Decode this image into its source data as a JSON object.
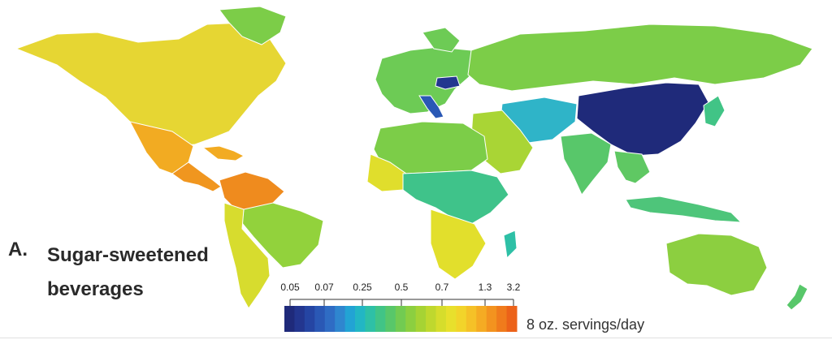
{
  "panel": {
    "letter": "A.",
    "title_line1": "Sugar-sweetened",
    "title_line2": "beverages"
  },
  "legend": {
    "ticks": [
      "0.05",
      "0.07",
      "0.25",
      "0.5",
      "0.7",
      "1.3",
      "3.2"
    ],
    "unit": "8 oz. servings/day",
    "colors": [
      "#1f2a7a",
      "#23368f",
      "#2545a3",
      "#2a58b5",
      "#2f6cc4",
      "#2f86cf",
      "#22a3d4",
      "#22b6c4",
      "#2ec0a6",
      "#41c486",
      "#58c76a",
      "#72cb52",
      "#8ccf40",
      "#a6d334",
      "#bfd82e",
      "#d6dd2c",
      "#e8e02c",
      "#f2d42a",
      "#f5c127",
      "#f5ab23",
      "#f3931f",
      "#f07b1c",
      "#ec6219"
    ]
  },
  "map": {
    "regions": [
      {
        "name": "North America",
        "color": "#e6d633"
      },
      {
        "name": "Mexico",
        "color": "#f2ab22"
      },
      {
        "name": "Central America",
        "color": "#f0961f"
      },
      {
        "name": "Northern South America",
        "color": "#ef8b1e"
      },
      {
        "name": "Brazil",
        "color": "#92d23c"
      },
      {
        "name": "Southern South America",
        "color": "#d7dc2e"
      },
      {
        "name": "Europe",
        "color": "#6dcb55"
      },
      {
        "name": "Poland",
        "color": "#23368f"
      },
      {
        "name": "Italy",
        "color": "#2a58b5"
      },
      {
        "name": "Russia",
        "color": "#7ccd48"
      },
      {
        "name": "Central Asia",
        "color": "#2fb4c8"
      },
      {
        "name": "China",
        "color": "#1f2a7a"
      },
      {
        "name": "India",
        "color": "#58c76a"
      },
      {
        "name": "Southeast Asia",
        "color": "#5fc863"
      },
      {
        "name": "North Africa",
        "color": "#7ccd48"
      },
      {
        "name": "West Africa",
        "color": "#e0de2c"
      },
      {
        "name": "Central Africa",
        "color": "#3fc38a"
      },
      {
        "name": "Southern Africa",
        "color": "#e2df2c"
      },
      {
        "name": "Madagascar",
        "color": "#2ec0a6"
      },
      {
        "name": "Australia",
        "color": "#8ccf40"
      },
      {
        "name": "Greenland",
        "color": "#7ccd48"
      },
      {
        "name": "Japan",
        "color": "#41c486"
      },
      {
        "name": "New Zealand",
        "color": "#58c76a"
      }
    ]
  }
}
